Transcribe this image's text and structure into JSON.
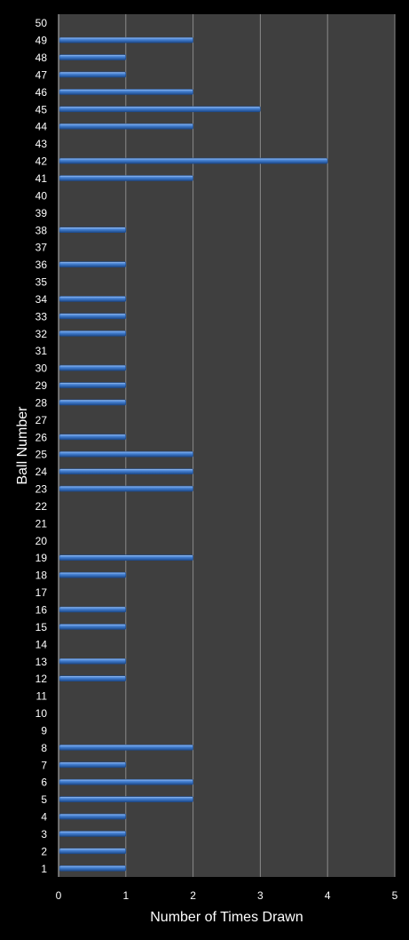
{
  "chart_data": {
    "type": "bar",
    "orientation": "horizontal",
    "title": "",
    "xlabel": "Number of Times Drawn",
    "ylabel": "Ball Number",
    "xlim": [
      0,
      5
    ],
    "x_ticks": [
      0,
      1,
      2,
      3,
      4,
      5
    ],
    "grid": true,
    "legend": "none",
    "colors": {
      "page_background": "#000000",
      "plot_background": "#3f3f3f",
      "bar": "#4a86d8",
      "bar_highlight": "#a9c8f2",
      "bar_shadow": "#1c4a8c",
      "gridline": "#8a8a8a",
      "text": "#ffffff"
    },
    "categories": [
      "1",
      "2",
      "3",
      "4",
      "5",
      "6",
      "7",
      "8",
      "9",
      "10",
      "11",
      "12",
      "13",
      "14",
      "15",
      "16",
      "17",
      "18",
      "19",
      "20",
      "21",
      "22",
      "23",
      "24",
      "25",
      "26",
      "27",
      "28",
      "29",
      "30",
      "31",
      "32",
      "33",
      "34",
      "35",
      "36",
      "37",
      "38",
      "39",
      "40",
      "41",
      "42",
      "43",
      "44",
      "45",
      "46",
      "47",
      "48",
      "49",
      "50"
    ],
    "values": [
      1,
      1,
      1,
      1,
      2,
      2,
      1,
      2,
      0,
      0,
      0,
      1,
      1,
      0,
      1,
      1,
      0,
      1,
      2,
      0,
      0,
      0,
      2,
      2,
      2,
      1,
      0,
      1,
      1,
      1,
      0,
      1,
      1,
      1,
      0,
      1,
      0,
      1,
      0,
      0,
      2,
      4,
      0,
      2,
      3,
      2,
      1,
      1,
      2,
      0
    ]
  }
}
